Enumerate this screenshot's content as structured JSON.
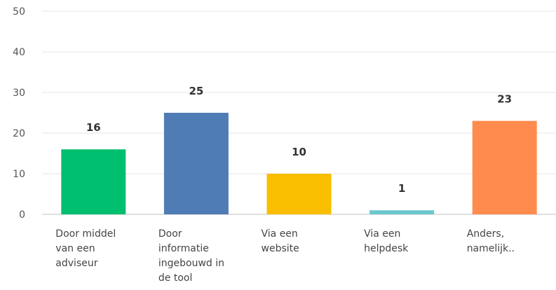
{
  "chart_data": {
    "type": "bar",
    "title": "",
    "xlabel": "",
    "ylabel": "",
    "ylim": [
      0,
      50
    ],
    "yticks": [
      0,
      10,
      20,
      30,
      40,
      50
    ],
    "grid": true,
    "categories": [
      "Door middel van een adviseur",
      "Door informatie ingebouwd in de tool",
      "Via een website",
      "Via een helpdesk",
      "Anders, namelijk.."
    ],
    "values": [
      16,
      25,
      10,
      1,
      23
    ],
    "colors": [
      "#00bf6f",
      "#507cb6",
      "#f9be00",
      "#6bc8cd",
      "#ff8b4f"
    ]
  }
}
